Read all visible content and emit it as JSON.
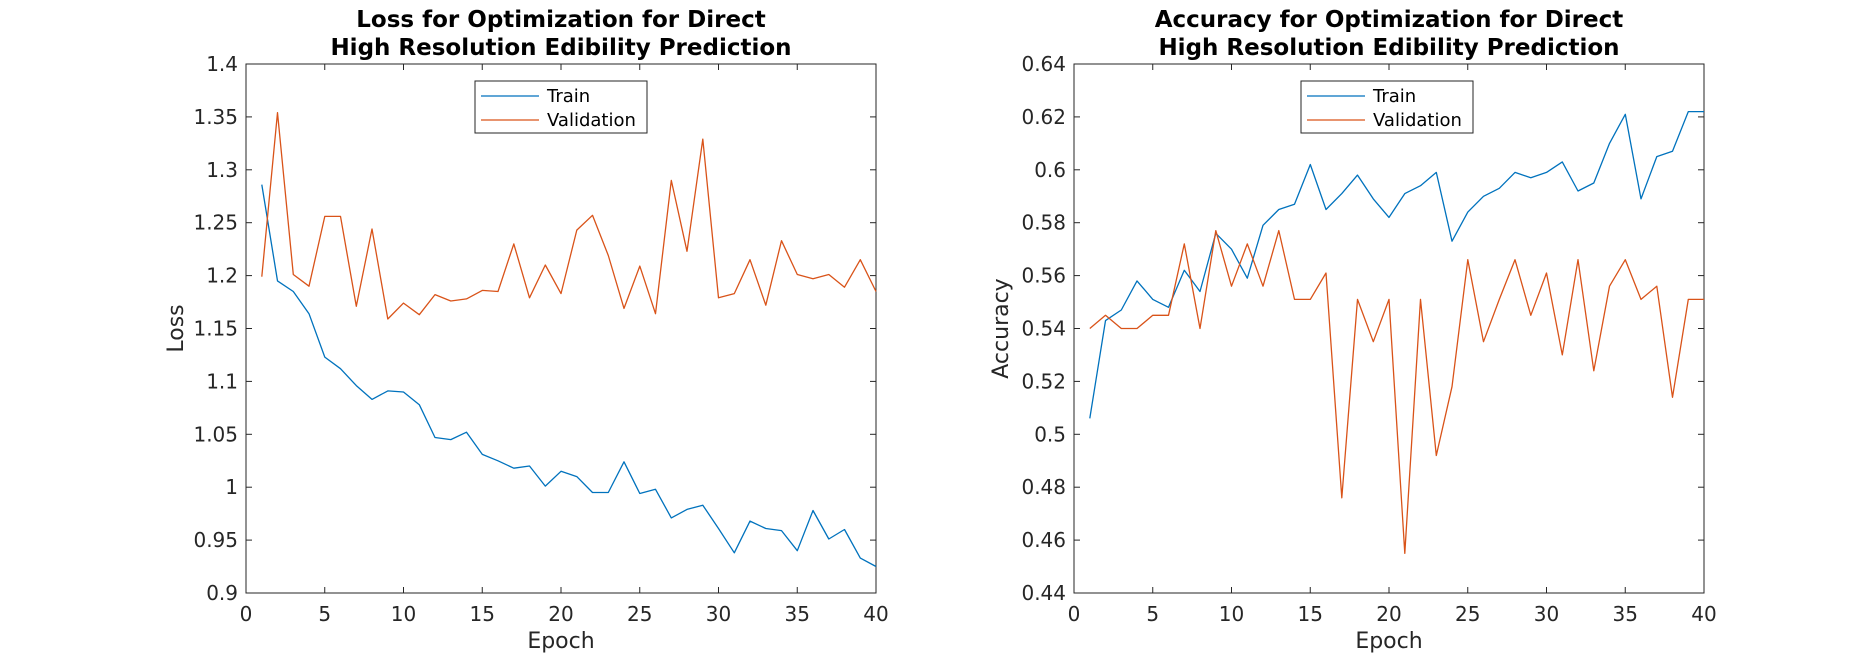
{
  "colors": {
    "train": "#0072BD",
    "validation": "#D95319",
    "axis": "#262626"
  },
  "chart_data": [
    {
      "type": "line",
      "title": [
        "Loss for Optimization for Direct",
        "High Resolution Edibility Prediction"
      ],
      "xlabel": "Epoch",
      "ylabel": "Loss",
      "xlim": [
        0,
        40
      ],
      "ylim": [
        0.9,
        1.4
      ],
      "xticks": [
        0,
        5,
        10,
        15,
        20,
        25,
        30,
        35,
        40
      ],
      "yticks": [
        0.9,
        0.95,
        1,
        1.05,
        1.1,
        1.15,
        1.2,
        1.25,
        1.3,
        1.35,
        1.4
      ],
      "yticklabels": [
        "0.9",
        "0.95",
        "1",
        "1.05",
        "1.1",
        "1.15",
        "1.2",
        "1.25",
        "1.3",
        "1.35",
        "1.4"
      ],
      "grid": false,
      "legend_position": "top-center",
      "x": [
        1,
        2,
        3,
        4,
        5,
        6,
        7,
        8,
        9,
        10,
        11,
        12,
        13,
        14,
        15,
        16,
        17,
        18,
        19,
        20,
        21,
        22,
        23,
        24,
        25,
        26,
        27,
        28,
        29,
        30,
        31,
        32,
        33,
        34,
        35,
        36,
        37,
        38,
        39,
        40
      ],
      "series": [
        {
          "name": "Train",
          "color": "#0072BD",
          "values": [
            1.286,
            1.195,
            1.185,
            1.164,
            1.123,
            1.112,
            1.096,
            1.083,
            1.091,
            1.09,
            1.078,
            1.047,
            1.045,
            1.052,
            1.031,
            1.025,
            1.018,
            1.02,
            1.001,
            1.015,
            1.01,
            0.995,
            0.995,
            1.024,
            0.994,
            0.998,
            0.971,
            0.979,
            0.983,
            0.961,
            0.938,
            0.968,
            0.961,
            0.959,
            0.94,
            0.978,
            0.951,
            0.96,
            0.933,
            0.925
          ]
        },
        {
          "name": "Validation",
          "color": "#D95319",
          "values": [
            1.199,
            1.354,
            1.201,
            1.19,
            1.256,
            1.256,
            1.171,
            1.244,
            1.159,
            1.174,
            1.163,
            1.182,
            1.176,
            1.178,
            1.186,
            1.185,
            1.23,
            1.179,
            1.21,
            1.183,
            1.243,
            1.257,
            1.219,
            1.169,
            1.209,
            1.164,
            1.29,
            1.223,
            1.329,
            1.179,
            1.183,
            1.215,
            1.172,
            1.233,
            1.201,
            1.197,
            1.201,
            1.189,
            1.215,
            1.185
          ]
        }
      ]
    },
    {
      "type": "line",
      "title": [
        "Accuracy for Optimization for Direct",
        "High Resolution Edibility Prediction"
      ],
      "xlabel": "Epoch",
      "ylabel": "Accuracy",
      "xlim": [
        0,
        40
      ],
      "ylim": [
        0.44,
        0.64
      ],
      "xticks": [
        0,
        5,
        10,
        15,
        20,
        25,
        30,
        35,
        40
      ],
      "yticks": [
        0.44,
        0.46,
        0.48,
        0.5,
        0.52,
        0.54,
        0.56,
        0.58,
        0.6,
        0.62,
        0.64
      ],
      "yticklabels": [
        "0.44",
        "0.46",
        "0.48",
        "0.5",
        "0.52",
        "0.54",
        "0.56",
        "0.58",
        "0.6",
        "0.62",
        "0.64"
      ],
      "grid": false,
      "legend_position": "top-center",
      "x": [
        1,
        2,
        3,
        4,
        5,
        6,
        7,
        8,
        9,
        10,
        11,
        12,
        13,
        14,
        15,
        16,
        17,
        18,
        19,
        20,
        21,
        22,
        23,
        24,
        25,
        26,
        27,
        28,
        29,
        30,
        31,
        32,
        33,
        34,
        35,
        36,
        37,
        38,
        39,
        40
      ],
      "series": [
        {
          "name": "Train",
          "color": "#0072BD",
          "values": [
            0.506,
            0.543,
            0.547,
            0.558,
            0.551,
            0.548,
            0.562,
            0.554,
            0.576,
            0.57,
            0.559,
            0.579,
            0.585,
            0.587,
            0.602,
            0.585,
            0.591,
            0.598,
            0.589,
            0.582,
            0.591,
            0.594,
            0.599,
            0.573,
            0.584,
            0.59,
            0.593,
            0.599,
            0.597,
            0.599,
            0.603,
            0.592,
            0.595,
            0.61,
            0.621,
            0.589,
            0.605,
            0.607,
            0.622,
            0.622
          ]
        },
        {
          "name": "Validation",
          "color": "#D95319",
          "values": [
            0.54,
            0.545,
            0.54,
            0.54,
            0.545,
            0.545,
            0.572,
            0.54,
            0.577,
            0.556,
            0.572,
            0.556,
            0.577,
            0.551,
            0.551,
            0.561,
            0.476,
            0.551,
            0.535,
            0.551,
            0.455,
            0.551,
            0.492,
            0.518,
            0.566,
            0.535,
            0.551,
            0.566,
            0.545,
            0.561,
            0.53,
            0.566,
            0.524,
            0.556,
            0.566,
            0.551,
            0.556,
            0.514,
            0.551,
            0.551
          ]
        }
      ]
    }
  ]
}
